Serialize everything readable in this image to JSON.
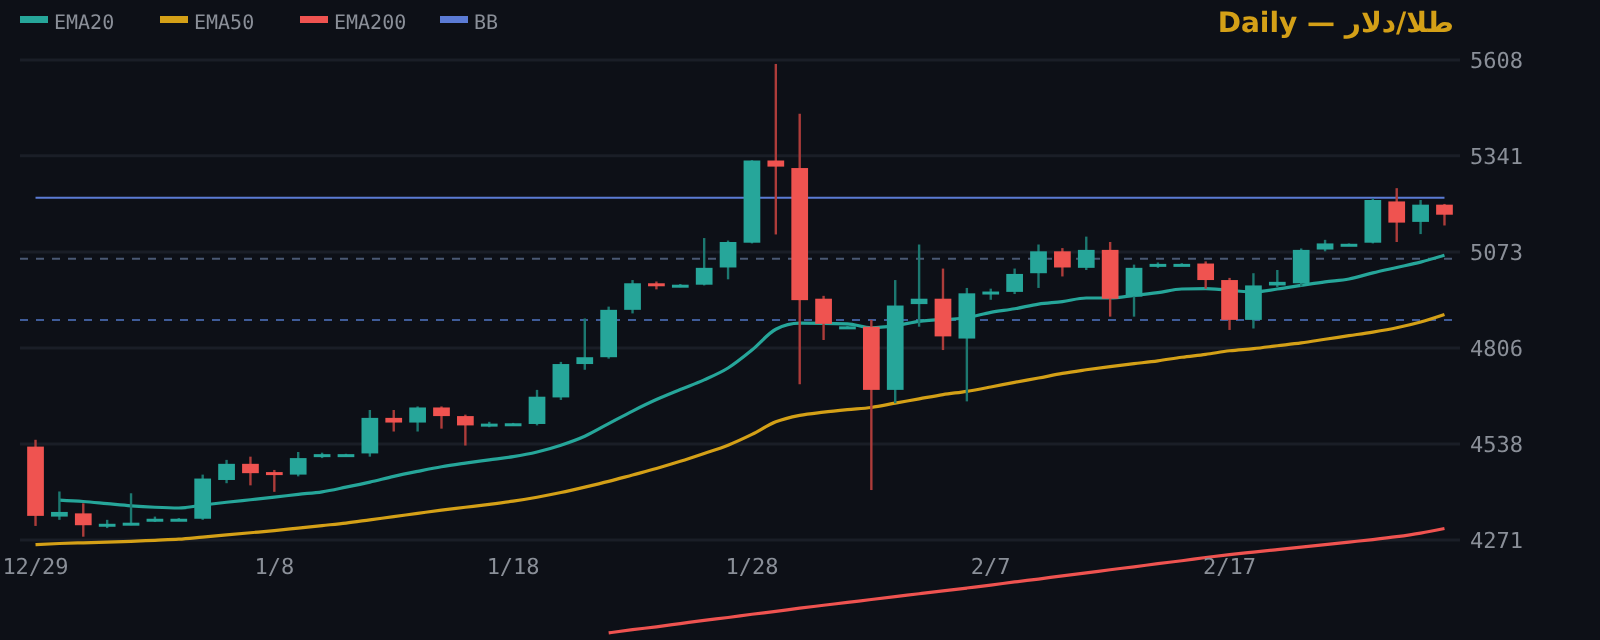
{
  "chart_data": {
    "type": "candlestick",
    "title": "Daily — طلا/دلار",
    "categories": [
      "12/29",
      null,
      null,
      null,
      null,
      null,
      null,
      null,
      null,
      null,
      "1/8",
      null,
      null,
      null,
      null,
      null,
      null,
      null,
      null,
      null,
      "1/18",
      null,
      null,
      null,
      null,
      null,
      null,
      null,
      null,
      null,
      "1/28",
      null,
      null,
      null,
      null,
      null,
      null,
      null,
      null,
      null,
      "2/7",
      null,
      null,
      null,
      null,
      null,
      null,
      null,
      null,
      null,
      "2/17",
      null,
      null,
      null,
      null,
      null,
      null,
      null,
      null,
      null
    ],
    "ohlc": [
      [
        4531,
        4550,
        4310,
        4338
      ],
      [
        4336,
        4406,
        4327,
        4349
      ],
      [
        4345,
        4373,
        4280,
        4312
      ],
      [
        4310,
        4327,
        4304,
        4316
      ],
      [
        4314,
        4401,
        4312,
        4319
      ],
      [
        4324,
        4336,
        4321,
        4330
      ],
      [
        4327,
        4332,
        4325,
        4330
      ],
      [
        4330,
        4453,
        4327,
        4442
      ],
      [
        4438,
        4494,
        4429,
        4483
      ],
      [
        4483,
        4503,
        4423,
        4457
      ],
      [
        4460,
        4466,
        4405,
        4453
      ],
      [
        4453,
        4516,
        4448,
        4499
      ],
      [
        4503,
        4514,
        4499,
        4510
      ],
      [
        4508,
        4511,
        4507,
        4510
      ],
      [
        4512,
        4633,
        4503,
        4611
      ],
      [
        4611,
        4633,
        4573,
        4598
      ],
      [
        4598,
        4643,
        4573,
        4640
      ],
      [
        4640,
        4643,
        4581,
        4616
      ],
      [
        4616,
        4620,
        4534,
        4590
      ],
      [
        4591,
        4600,
        4585,
        4595
      ],
      [
        4594,
        4597,
        4593,
        4596
      ],
      [
        4594,
        4689,
        4590,
        4670
      ],
      [
        4668,
        4767,
        4661,
        4761
      ],
      [
        4761,
        4888,
        4745,
        4780
      ],
      [
        4780,
        4921,
        4776,
        4912
      ],
      [
        4912,
        4995,
        4902,
        4986
      ],
      [
        4986,
        4991,
        4969,
        4978
      ],
      [
        4977,
        4984,
        4975,
        4982
      ],
      [
        4982,
        5112,
        4980,
        5029
      ],
      [
        5030,
        5105,
        4997,
        5101
      ],
      [
        5099,
        5329,
        5097,
        5328
      ],
      [
        5328,
        5597,
        5122,
        5311
      ],
      [
        5307,
        5458,
        4705,
        4939
      ],
      [
        4943,
        4951,
        4828,
        4873
      ],
      [
        4863,
        4868,
        4861,
        4866
      ],
      [
        4865,
        4884,
        4410,
        4689
      ],
      [
        4689,
        4995,
        4652,
        4924
      ],
      [
        4928,
        5094,
        4865,
        4943
      ],
      [
        4943,
        5027,
        4800,
        4838
      ],
      [
        4832,
        4973,
        4657,
        4958
      ],
      [
        4955,
        4971,
        4940,
        4963
      ],
      [
        4962,
        5027,
        4956,
        5012
      ],
      [
        5014,
        5094,
        4973,
        5075
      ],
      [
        5075,
        5084,
        5005,
        5030
      ],
      [
        5029,
        5116,
        5023,
        5079
      ],
      [
        5079,
        5101,
        4893,
        4943
      ],
      [
        4949,
        5038,
        4893,
        5029
      ],
      [
        5033,
        5044,
        5029,
        5040
      ],
      [
        5038,
        5042,
        5036,
        5040
      ],
      [
        5041,
        5047,
        4971,
        4995
      ],
      [
        4995,
        5001,
        4856,
        4884
      ],
      [
        4884,
        5014,
        4860,
        4980
      ],
      [
        4980,
        5023,
        4975,
        4990
      ],
      [
        4986,
        5083,
        4977,
        5079
      ],
      [
        5080,
        5107,
        5075,
        5097
      ],
      [
        5093,
        5097,
        5092,
        5096
      ],
      [
        5099,
        5222,
        5097,
        5218
      ],
      [
        5214,
        5251,
        5101,
        5155
      ],
      [
        5157,
        5218,
        5123,
        5205
      ],
      [
        5205,
        5207,
        5147,
        5177
      ]
    ],
    "colors": [
      "#ef5350",
      "#26a69a",
      "#ef5350",
      "#26a69a",
      "#26a69a",
      "#26a69a",
      "#26a69a",
      "#26a69a",
      "#26a69a",
      "#ef5350",
      "#ef5350",
      "#26a69a",
      "#26a69a",
      "#26a69a",
      "#26a69a",
      "#ef5350",
      "#26a69a",
      "#ef5350",
      "#ef5350",
      "#26a69a",
      "#26a69a",
      "#26a69a",
      "#26a69a",
      "#26a69a",
      "#26a69a",
      "#26a69a",
      "#ef5350",
      "#26a69a",
      "#26a69a",
      "#26a69a",
      "#26a69a",
      "#ef5350",
      "#ef5350",
      "#ef5350",
      "#26a69a",
      "#ef5350",
      "#26a69a",
      "#26a69a",
      "#ef5350",
      "#26a69a",
      "#26a69a",
      "#26a69a",
      "#26a69a",
      "#ef5350",
      "#26a69a",
      "#ef5350",
      "#26a69a",
      "#26a69a",
      "#26a69a",
      "#ef5350",
      "#ef5350",
      "#26a69a",
      "#26a69a",
      "#26a69a",
      "#26a69a",
      "#26a69a",
      "#26a69a",
      "#ef5350",
      "#26a69a",
      "#ef5350"
    ],
    "series": [
      {
        "name": "EMA20",
        "type": "line",
        "color": "#26a69a",
        "values": [
          null,
          4382,
          4378,
          4372,
          4366,
          4362,
          4360,
          4368,
          4376,
          4383,
          4390,
          4398,
          4405,
          4418,
          4432,
          4448,
          4462,
          4475,
          4485,
          4494,
          4503,
          4516,
          4535,
          4560,
          4595,
          4630,
          4662,
          4690,
          4717,
          4750,
          4800,
          4858,
          4875,
          null,
          4873,
          4862,
          4868,
          4880,
          null,
          4890,
          4905,
          4915,
          4928,
          4935,
          4945,
          4945,
          4952,
          4960,
          4970,
          4971,
          null,
          4962,
          4970,
          4980,
          4990,
          4998,
          5015,
          5030,
          5045,
          5064
        ]
      },
      {
        "name": "EMA50",
        "type": "line",
        "color": "#d4a017",
        "values": [
          4258,
          4261,
          4263,
          4265,
          4267,
          4270,
          4273,
          4279,
          4285,
          4291,
          4297,
          4304,
          4311,
          4318,
          4327,
          4336,
          4345,
          4354,
          4362,
          4370,
          4379,
          4390,
          4403,
          4418,
          4434,
          4452,
          4470,
          4490,
          4512,
          4535,
          4565,
          4600,
          4618,
          4627,
          4634,
          4640,
          4652,
          4664,
          4676,
          4685,
          4697,
          4710,
          4722,
          4735,
          4745,
          4754,
          4762,
          4770,
          4780,
          4788,
          4798,
          4804,
          4812,
          4820,
          4830,
          4840,
          4850,
          4862,
          4878,
          4899
        ]
      },
      {
        "name": "EMA200",
        "type": "line",
        "color": "#ef5350",
        "values": [
          null,
          null,
          null,
          null,
          null,
          null,
          null,
          null,
          null,
          null,
          null,
          null,
          null,
          null,
          null,
          null,
          null,
          null,
          null,
          null,
          null,
          null,
          null,
          null,
          4012,
          4021,
          4029,
          4038,
          4047,
          4055,
          4064,
          4072,
          4081,
          4089,
          4097,
          4105,
          4113,
          4121,
          4129,
          4137,
          4145,
          4154,
          4162,
          4171,
          4179,
          4188,
          4196,
          4205,
          4213,
          4222,
          4230,
          4237,
          4244,
          4251,
          4258,
          4265,
          4272,
          4280,
          4290,
          4303
        ]
      },
      {
        "name": "BB",
        "type": "line",
        "color": "#5b7bd5",
        "values": [
          5224,
          5224,
          5224,
          5224,
          5224,
          5224,
          5224,
          5224,
          5224,
          5224,
          5224,
          5224,
          5224,
          5224,
          5224,
          5224,
          5224,
          5224,
          5224,
          5224,
          5224,
          5224,
          5224,
          5224,
          5224,
          5224,
          5224,
          5224,
          5224,
          5224,
          5224,
          5224,
          null,
          5224,
          5224,
          5224,
          5224,
          5224,
          5224,
          5224,
          5224,
          5224,
          5224,
          5224,
          5224,
          5224,
          5224,
          5224,
          5224,
          5224,
          5224,
          5224,
          5224,
          5224,
          5224,
          5224,
          5224,
          5224,
          5224,
          5224
        ]
      }
    ],
    "ref_lines": [
      {
        "axis": "y",
        "value": 5054,
        "color": "#4a5873",
        "line_style": "dashed"
      },
      {
        "axis": "y",
        "value": 4884,
        "color": "#3f5c99",
        "line_style": "dashed"
      }
    ],
    "ylim": [
      3990,
      5608
    ],
    "yticks": [
      4271,
      4538,
      4806,
      5073,
      5341,
      5608
    ],
    "grid": "y",
    "legend": "top left"
  }
}
